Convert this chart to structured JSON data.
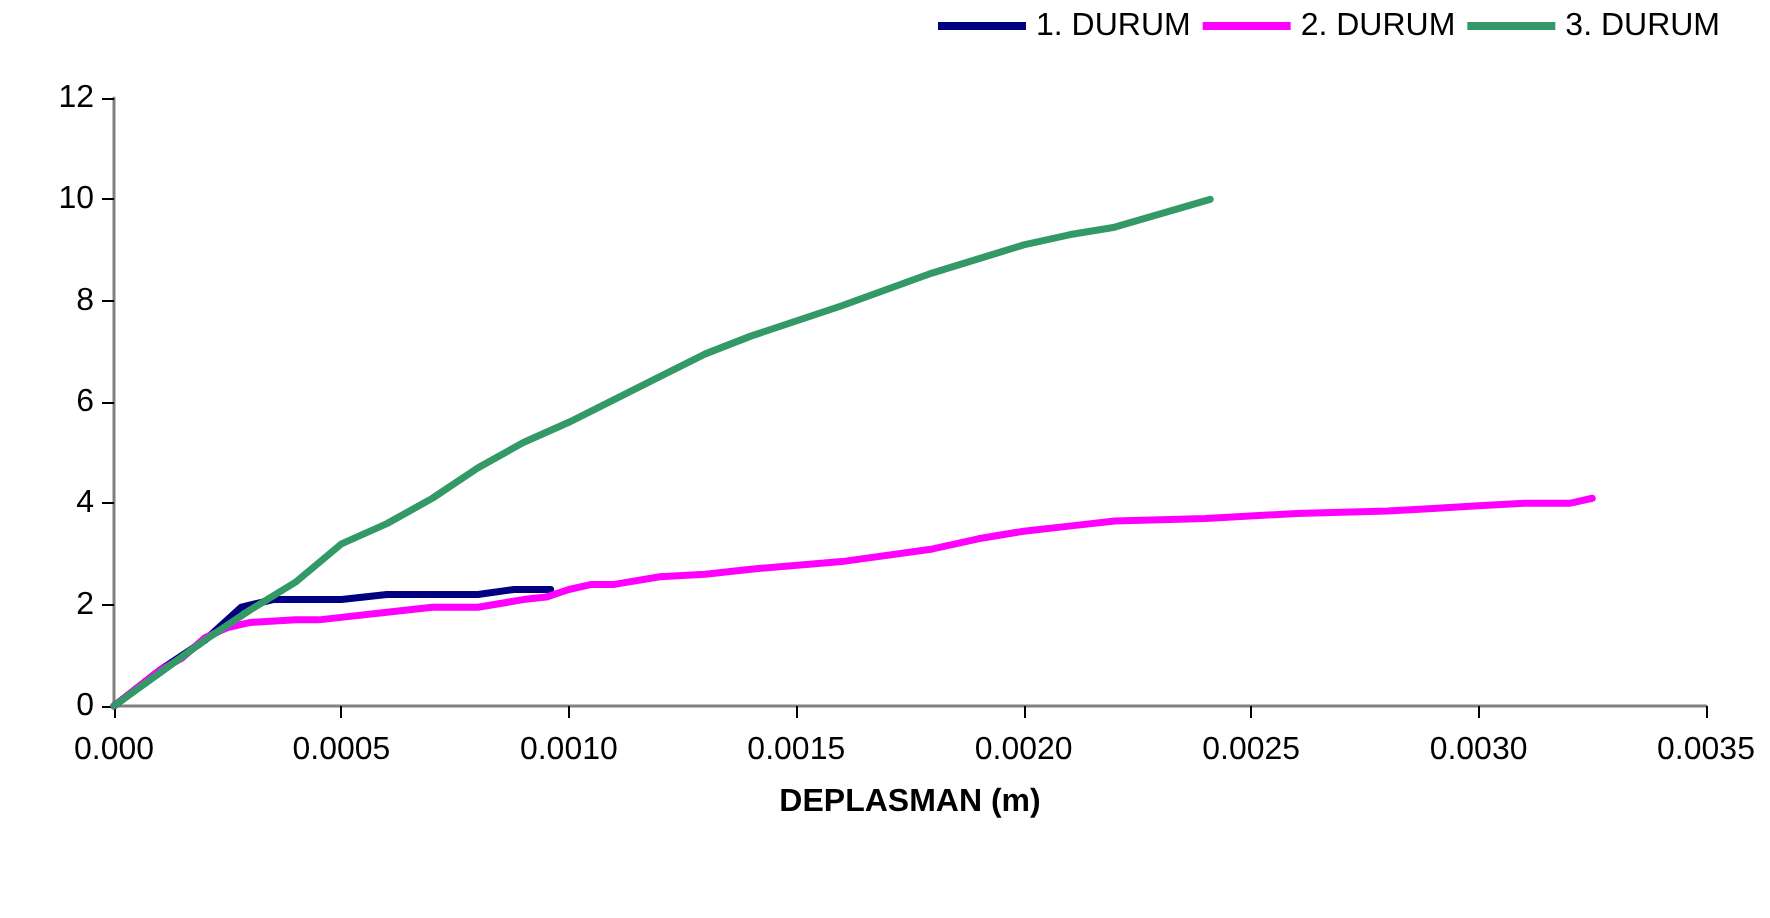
{
  "chart_data": {
    "type": "line",
    "xlabel": "DEPLASMAN (m)",
    "legend": "top right",
    "grid": false,
    "marker": "none",
    "line_style": "solid",
    "xlim": [
      0,
      0.0035
    ],
    "xticks": [
      {
        "value": 0,
        "label": "0.000"
      },
      {
        "value": 0.0005,
        "label": "0.0005"
      },
      {
        "value": 0.001,
        "label": "0.0010"
      },
      {
        "value": 0.0015,
        "label": "0.0015"
      },
      {
        "value": 0.002,
        "label": "0.0020"
      },
      {
        "value": 0.0025,
        "label": "0.0025"
      },
      {
        "value": 0.003,
        "label": "0.0030"
      },
      {
        "value": 0.0035,
        "label": "0.0035"
      }
    ],
    "ylim": [
      0,
      12
    ],
    "yticks": [
      0,
      2,
      4,
      6,
      8,
      10,
      12
    ],
    "series": [
      {
        "name": "1. DURUM",
        "color": "#000080",
        "x": [
          0,
          5e-05,
          0.0001,
          0.0002,
          0.00028,
          0.00035,
          0.0005,
          0.0006,
          0.0008,
          0.00088,
          0.00096
        ],
        "values": [
          0,
          0.35,
          0.7,
          1.3,
          1.95,
          2.1,
          2.1,
          2.2,
          2.2,
          2.3,
          2.3
        ]
      },
      {
        "name": "2. DURUM",
        "color": "#ff00ff",
        "x": [
          0,
          0.0001,
          0.00015,
          0.0002,
          0.00025,
          0.0003,
          0.0004,
          0.00045,
          0.0006,
          0.0007,
          0.0008,
          0.0009,
          0.00095,
          0.001,
          0.00105,
          0.0011,
          0.0012,
          0.0013,
          0.0014,
          0.0016,
          0.0018,
          0.0019,
          0.002,
          0.0021,
          0.0022,
          0.0024,
          0.0026,
          0.0028,
          0.0029,
          0.003,
          0.0031,
          0.0032,
          0.00325
        ],
        "values": [
          0,
          0.7,
          0.95,
          1.35,
          1.55,
          1.65,
          1.7,
          1.7,
          1.85,
          1.95,
          1.95,
          2.1,
          2.15,
          2.3,
          2.4,
          2.4,
          2.55,
          2.6,
          2.7,
          2.85,
          3.1,
          3.3,
          3.45,
          3.55,
          3.65,
          3.7,
          3.8,
          3.85,
          3.9,
          3.95,
          4.0,
          4.0,
          4.1
        ]
      },
      {
        "name": "3. DURUM",
        "color": "#339966",
        "x": [
          0,
          0.0001,
          0.0002,
          0.0003,
          0.0004,
          0.0005,
          0.0006,
          0.0007,
          0.0008,
          0.0009,
          0.001,
          0.0012,
          0.0013,
          0.0014,
          0.0016,
          0.0018,
          0.002,
          0.0021,
          0.0022,
          0.00241
        ],
        "values": [
          0,
          0.65,
          1.3,
          1.9,
          2.45,
          3.2,
          3.6,
          4.1,
          4.7,
          5.2,
          5.6,
          6.5,
          6.95,
          7.3,
          7.9,
          8.55,
          9.1,
          9.3,
          9.45,
          10
        ]
      }
    ]
  }
}
